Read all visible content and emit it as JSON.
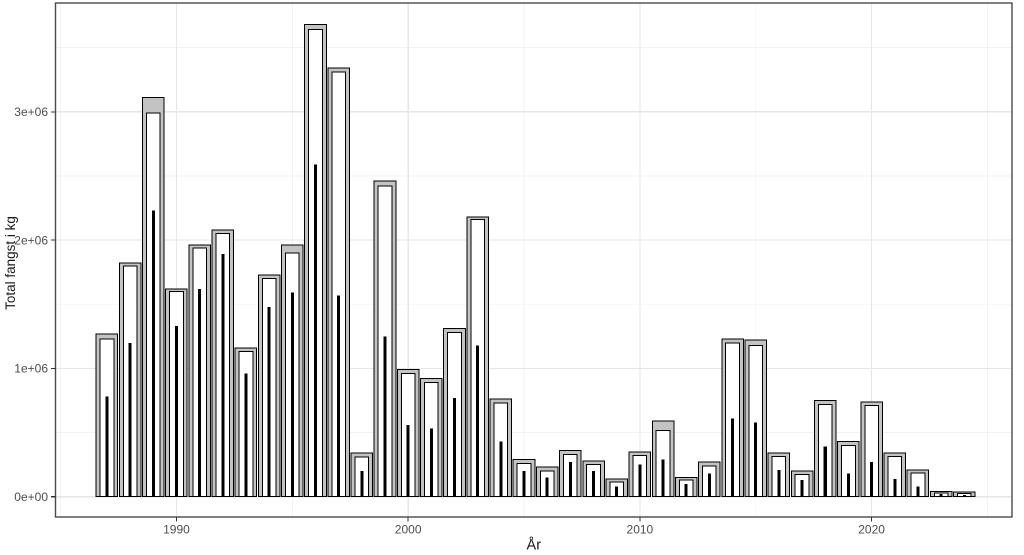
{
  "chart_data": {
    "type": "bar",
    "title": "",
    "xlabel": "År",
    "ylabel": "Total fangst i kg",
    "legend": "none",
    "grid": true,
    "xlim": [
      1984.78,
      2026.06
    ],
    "ylim": [
      -158000,
      3848000
    ],
    "x_ticks": {
      "values": [
        1990,
        2000,
        2010,
        2020
      ],
      "labels": [
        "1990",
        "2000",
        "2010",
        "2020"
      ]
    },
    "x_minor": [
      1985,
      1995,
      2005,
      2015,
      2025
    ],
    "y_ticks": {
      "values": [
        0,
        1000000,
        2000000,
        3000000
      ],
      "labels": [
        "0e+00",
        "1e+06",
        "2e+06",
        "3e+06"
      ]
    },
    "y_minor": [
      500000,
      1500000,
      2500000,
      3500000
    ],
    "categories": [
      1987,
      1988,
      1989,
      1990,
      1991,
      1992,
      1993,
      1994,
      1995,
      1996,
      1997,
      1998,
      1999,
      2000,
      2001,
      2002,
      2003,
      2004,
      2005,
      2006,
      2007,
      2008,
      2009,
      2010,
      2011,
      2012,
      2013,
      2014,
      2015,
      2016,
      2017,
      2018,
      2019,
      2020,
      2021,
      2022,
      2023,
      2024
    ],
    "series": [
      {
        "name": "outer-gray-bar",
        "color": "#c3c3c3",
        "stroke": "#000000",
        "bar_width_years": 0.93,
        "values": [
          1270000,
          1820000,
          3110000,
          1620000,
          1960000,
          2080000,
          1160000,
          1730000,
          1960000,
          3680000,
          3340000,
          340000,
          2460000,
          990000,
          920000,
          1310000,
          2180000,
          760000,
          290000,
          230000,
          360000,
          280000,
          140000,
          350000,
          590000,
          150000,
          270000,
          1230000,
          1220000,
          340000,
          200000,
          750000,
          430000,
          740000,
          340000,
          210000,
          40000,
          35000
        ]
      },
      {
        "name": "middle-white-bar",
        "color": "#ffffff",
        "stroke": "#000000",
        "bar_width_years": 0.59,
        "values": [
          1230000,
          1800000,
          2990000,
          1600000,
          1940000,
          2050000,
          1130000,
          1700000,
          1900000,
          3640000,
          3310000,
          310000,
          2420000,
          960000,
          890000,
          1280000,
          2160000,
          730000,
          260000,
          200000,
          330000,
          250000,
          115000,
          320000,
          515000,
          130000,
          240000,
          1200000,
          1180000,
          315000,
          175000,
          720000,
          400000,
          710000,
          315000,
          185000,
          30000,
          25000
        ]
      },
      {
        "name": "inner-black-bar",
        "color": "#000000",
        "stroke": "none",
        "bar_width_years": 0.13,
        "values": [
          780000,
          1200000,
          2230000,
          1330000,
          1620000,
          1890000,
          960000,
          1480000,
          1590000,
          2590000,
          1570000,
          200000,
          1250000,
          560000,
          530000,
          770000,
          1180000,
          430000,
          200000,
          150000,
          270000,
          200000,
          80000,
          250000,
          290000,
          100000,
          180000,
          610000,
          580000,
          210000,
          130000,
          390000,
          180000,
          270000,
          140000,
          80000,
          20000,
          15000
        ]
      }
    ],
    "colors": {
      "background": "#ffffff",
      "panel_background": "#ffffff",
      "panel_border": "#4a4a4a",
      "grid_major": "#e6e6e6",
      "grid_minor": "#f2f2f2",
      "tick_mark": "#333333",
      "tick_label": "#4d4d4d",
      "axis_title": "#1a1a1a"
    }
  }
}
